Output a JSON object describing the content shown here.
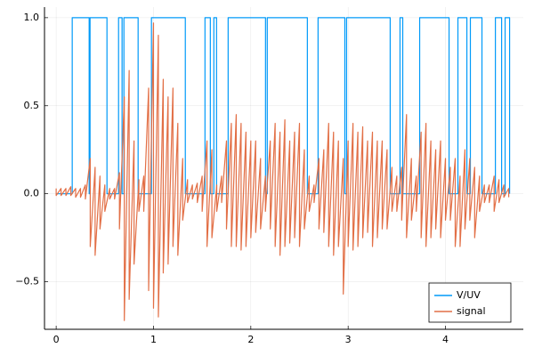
{
  "chart_data": {
    "type": "line",
    "xlim": [
      -0.12,
      4.8
    ],
    "ylim": [
      -0.77,
      1.06
    ],
    "xticks": [
      0,
      1,
      2,
      3,
      4
    ],
    "yticks": [
      {
        "value": -0.5,
        "label": "−0.5"
      },
      {
        "value": 0,
        "label": "0.0"
      },
      0.5,
      {
        "value": 1,
        "label": "1.0"
      }
    ],
    "grid": true,
    "legend": "bottom right",
    "series": [
      {
        "name": "V/UV",
        "color": "#009af9",
        "x": [
          0,
          0.165,
          0.165,
          0.339,
          0.339,
          0.348,
          0.348,
          0.522,
          0.522,
          0.641,
          0.641,
          0.677,
          0.677,
          0.696,
          0.696,
          0.842,
          0.842,
          0.979,
          0.979,
          1.327,
          1.327,
          1.529,
          1.529,
          1.584,
          1.584,
          1.62,
          1.62,
          1.648,
          1.648,
          1.767,
          1.767,
          2.151,
          2.151,
          2.169,
          2.169,
          2.581,
          2.581,
          2.691,
          2.691,
          2.966,
          2.966,
          2.984,
          2.984,
          3.432,
          3.432,
          3.533,
          3.533,
          3.561,
          3.561,
          3.735,
          3.735,
          4.037,
          4.037,
          4.128,
          4.128,
          4.22,
          4.22,
          4.256,
          4.256,
          4.375,
          4.375,
          4.513,
          4.513,
          4.577,
          4.577,
          4.613,
          4.613,
          4.659,
          4.659
        ],
        "values": [
          0,
          0,
          1,
          1,
          0,
          0,
          1,
          1,
          0,
          0,
          1,
          1,
          0,
          0,
          1,
          1,
          0,
          0,
          1,
          1,
          0,
          0,
          1,
          1,
          0,
          0,
          1,
          1,
          0,
          0,
          1,
          1,
          0,
          0,
          1,
          1,
          0,
          0,
          1,
          1,
          0,
          0,
          1,
          1,
          0,
          0,
          1,
          1,
          0,
          0,
          1,
          1,
          0,
          0,
          1,
          1,
          0,
          0,
          1,
          1,
          0,
          0,
          1,
          1,
          0,
          0,
          1,
          1,
          0
        ]
      },
      {
        "name": "signal",
        "color": "#e26f46",
        "x": [
          0,
          0,
          0.05,
          0.05,
          0.1,
          0.1,
          0.15,
          0.15,
          0.2,
          0.2,
          0.25,
          0.25,
          0.3,
          0.3,
          0.35,
          0.35,
          0.4,
          0.4,
          0.45,
          0.45,
          0.5,
          0.5,
          0.55,
          0.55,
          0.6,
          0.6,
          0.65,
          0.65,
          0.7,
          0.7,
          0.75,
          0.75,
          0.8,
          0.8,
          0.85,
          0.85,
          0.9,
          0.9,
          0.95,
          0.95,
          1.0,
          1.0,
          1.05,
          1.05,
          1.1,
          1.1,
          1.15,
          1.15,
          1.2,
          1.2,
          1.25,
          1.25,
          1.3,
          1.3,
          1.35,
          1.35,
          1.4,
          1.4,
          1.45,
          1.45,
          1.5,
          1.5,
          1.55,
          1.55,
          1.6,
          1.6,
          1.65,
          1.65,
          1.7,
          1.7,
          1.75,
          1.75,
          1.8,
          1.8,
          1.85,
          1.85,
          1.9,
          1.9,
          1.95,
          1.95,
          2.0,
          2.0,
          2.05,
          2.05,
          2.1,
          2.1,
          2.15,
          2.15,
          2.2,
          2.2,
          2.25,
          2.25,
          2.3,
          2.3,
          2.35,
          2.35,
          2.4,
          2.4,
          2.45,
          2.45,
          2.5,
          2.5,
          2.55,
          2.55,
          2.6,
          2.6,
          2.65,
          2.65,
          2.7,
          2.7,
          2.75,
          2.75,
          2.8,
          2.8,
          2.85,
          2.85,
          2.9,
          2.9,
          2.95,
          2.95,
          3.0,
          3.0,
          3.05,
          3.05,
          3.1,
          3.1,
          3.15,
          3.15,
          3.2,
          3.2,
          3.25,
          3.25,
          3.3,
          3.3,
          3.35,
          3.35,
          3.4,
          3.4,
          3.45,
          3.45,
          3.5,
          3.5,
          3.55,
          3.55,
          3.6,
          3.6,
          3.65,
          3.65,
          3.7,
          3.7,
          3.75,
          3.75,
          3.8,
          3.8,
          3.85,
          3.85,
          3.9,
          3.9,
          3.95,
          3.95,
          4.0,
          4.0,
          4.05,
          4.05,
          4.1,
          4.1,
          4.15,
          4.15,
          4.2,
          4.2,
          4.25,
          4.25,
          4.3,
          4.3,
          4.35,
          4.35,
          4.4,
          4.4,
          4.45,
          4.45,
          4.5,
          4.5,
          4.55,
          4.55,
          4.6,
          4.6,
          4.65,
          4.65
        ],
        "values": [
          0.03,
          -0.01,
          0.03,
          -0.01,
          0.03,
          -0.01,
          0.04,
          -0.01,
          0.03,
          -0.02,
          0.03,
          -0.02,
          0.05,
          -0.03,
          0.2,
          -0.3,
          0.15,
          -0.35,
          0.1,
          -0.2,
          0.05,
          -0.1,
          0.03,
          -0.03,
          0.03,
          -0.03,
          0.12,
          -0.2,
          0.55,
          -0.72,
          0.7,
          -0.6,
          0.3,
          -0.4,
          0.08,
          -0.1,
          0.1,
          -0.1,
          0.6,
          -0.55,
          0.97,
          -0.65,
          0.9,
          -0.7,
          0.65,
          -0.45,
          0.55,
          -0.4,
          0.6,
          -0.3,
          0.4,
          -0.35,
          0.2,
          -0.15,
          0.08,
          -0.05,
          0.05,
          -0.03,
          0.06,
          -0.05,
          0.1,
          -0.1,
          0.3,
          -0.3,
          0.25,
          -0.25,
          0.05,
          -0.1,
          0.1,
          -0.05,
          0.3,
          -0.2,
          0.4,
          -0.3,
          0.45,
          -0.3,
          0.4,
          -0.32,
          0.35,
          -0.3,
          0.3,
          -0.25,
          0.3,
          -0.22,
          0.2,
          -0.2,
          0.1,
          -0.1,
          0.3,
          -0.2,
          0.4,
          -0.3,
          0.35,
          -0.35,
          0.42,
          -0.3,
          0.3,
          -0.28,
          0.35,
          -0.25,
          0.4,
          -0.3,
          0.25,
          -0.2,
          0.1,
          -0.1,
          0.05,
          -0.05,
          0.2,
          -0.2,
          0.25,
          -0.22,
          0.4,
          -0.3,
          0.35,
          -0.35,
          0.3,
          -0.3,
          0.2,
          -0.57,
          0.3,
          -0.3,
          0.4,
          -0.32,
          0.35,
          -0.3,
          0.38,
          -0.25,
          0.3,
          -0.22,
          0.35,
          -0.3,
          0.3,
          -0.25,
          0.3,
          -0.2,
          0.25,
          -0.2,
          0.15,
          -0.1,
          0.1,
          -0.1,
          0.15,
          -0.15,
          0.45,
          -0.25,
          0.2,
          -0.15,
          0.1,
          -0.1,
          0.35,
          -0.25,
          0.4,
          -0.3,
          0.3,
          -0.25,
          0.25,
          -0.2,
          0.3,
          -0.25,
          0.2,
          -0.15,
          0.15,
          -0.15,
          0.2,
          -0.3,
          0.1,
          -0.3,
          0.25,
          -0.2,
          0.2,
          -0.15,
          0.15,
          -0.25,
          0.1,
          -0.1,
          0.05,
          -0.05,
          0.05,
          -0.05,
          0.1,
          -0.1,
          0.08,
          -0.05,
          0.05,
          -0.02,
          0.03,
          -0.02
        ]
      }
    ]
  }
}
